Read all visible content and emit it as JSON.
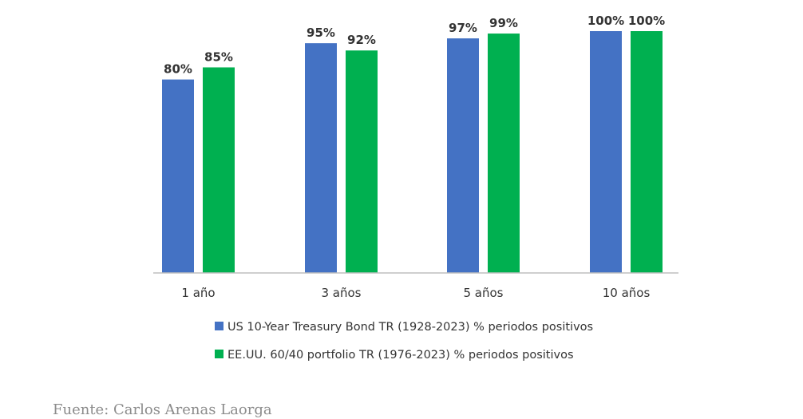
{
  "chart_data": {
    "type": "bar",
    "categories": [
      "1 año",
      "3 años",
      "5 años",
      "10 años"
    ],
    "series": [
      {
        "name": "US 10-Year Treasury Bond TR (1928-2023) % periodos positivos",
        "values": [
          80,
          95,
          97,
          100
        ],
        "labels": [
          "80%",
          "95%",
          "97%",
          "100%"
        ],
        "color": "#4472C4"
      },
      {
        "name": "EE.UU. 60/40 portfolio TR (1976-2023) % periodos positivos",
        "values": [
          85,
          92,
          99,
          100
        ],
        "labels": [
          "85%",
          "92%",
          "99%",
          "100%"
        ],
        "color": "#00B050"
      }
    ],
    "title": "",
    "xlabel": "",
    "ylabel": "",
    "ylim": [
      0,
      100
    ],
    "grid": false,
    "legend_position": "bottom"
  },
  "source": {
    "text": "Fuente: Carlos Arenas Laorga"
  },
  "colors": {
    "axis": "#BFBFBF",
    "text": "#333333",
    "source_text": "#8C8C8C"
  }
}
